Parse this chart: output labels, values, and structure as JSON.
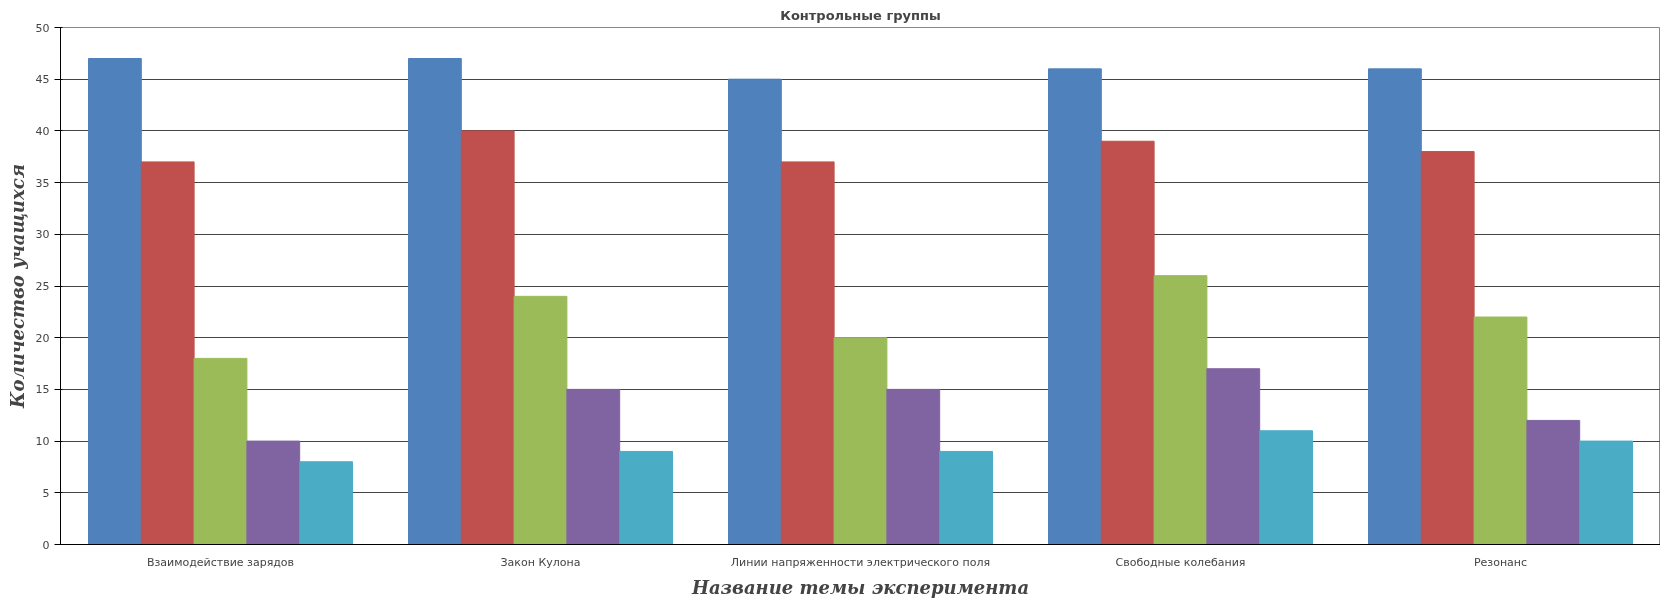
{
  "chart_data": {
    "type": "bar",
    "title": "Контрольные группы",
    "xlabel": "Название темы эксперимента",
    "ylabel": "Количество учащихся",
    "categories": [
      "Взаимодействие зарядов",
      "Закон Кулона",
      "Линии напряженности электрического поля",
      "Свободные колебания",
      "Резонанс"
    ],
    "series": [
      {
        "color": "#4f81bd",
        "values": [
          47,
          47,
          45,
          46,
          46
        ]
      },
      {
        "color": "#c0504d",
        "values": [
          37,
          40,
          37,
          39,
          38
        ]
      },
      {
        "color": "#9bbb59",
        "values": [
          18,
          24,
          20,
          26,
          22
        ]
      },
      {
        "color": "#8064a2",
        "values": [
          10,
          15,
          15,
          17,
          12
        ]
      },
      {
        "color": "#4bacc6",
        "values": [
          8,
          9,
          9,
          11,
          10
        ]
      }
    ],
    "ylim": [
      0,
      50
    ],
    "yticks": [
      0,
      5,
      10,
      15,
      20,
      25,
      30,
      35,
      40,
      45,
      50
    ],
    "grid": "y"
  }
}
